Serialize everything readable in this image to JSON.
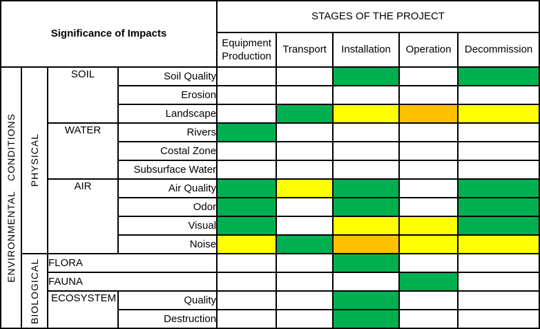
{
  "chart_data": {
    "type": "heatmap",
    "row_header_title": "Significance of Impacts",
    "col_header_title": "STAGES OF THE PROJECT",
    "side_label": "ENVIRONMENTAL CONDITIONS",
    "columns": [
      "Equipment Production",
      "Transport",
      "Installation",
      "Operation",
      "Decommission"
    ],
    "color_scale": {
      "green": "#00B050",
      "yellow": "#FFFF00",
      "orange": "#FFC000",
      "white": "#FFFFFF"
    },
    "rows": [
      {
        "group": "PHYSICAL",
        "category": "SOIL",
        "label": "Soil Quality",
        "cells": [
          "white",
          "white",
          "green",
          "white",
          "green"
        ]
      },
      {
        "group": "PHYSICAL",
        "category": "SOIL",
        "label": "Erosion",
        "cells": [
          "white",
          "white",
          "white",
          "white",
          "white"
        ]
      },
      {
        "group": "PHYSICAL",
        "category": "SOIL",
        "label": "Landscape",
        "cells": [
          "white",
          "green",
          "yellow",
          "orange",
          "yellow"
        ]
      },
      {
        "group": "PHYSICAL",
        "category": "WATER",
        "label": "Rivers",
        "cells": [
          "green",
          "white",
          "white",
          "white",
          "white"
        ]
      },
      {
        "group": "PHYSICAL",
        "category": "WATER",
        "label": "Costal Zone",
        "cells": [
          "white",
          "white",
          "white",
          "white",
          "white"
        ]
      },
      {
        "group": "PHYSICAL",
        "category": "WATER",
        "label": "Subsurface Water",
        "cells": [
          "white",
          "white",
          "white",
          "white",
          "white"
        ]
      },
      {
        "group": "PHYSICAL",
        "category": "AIR",
        "label": "Air Quality",
        "cells": [
          "green",
          "yellow",
          "green",
          "white",
          "green"
        ]
      },
      {
        "group": "PHYSICAL",
        "category": "AIR",
        "label": "Odor",
        "cells": [
          "green",
          "white",
          "green",
          "white",
          "green"
        ]
      },
      {
        "group": "PHYSICAL",
        "category": "AIR",
        "label": "Visual",
        "cells": [
          "green",
          "white",
          "yellow",
          "yellow",
          "green"
        ]
      },
      {
        "group": "PHYSICAL",
        "category": "AIR",
        "label": "Noise",
        "cells": [
          "yellow",
          "green",
          "orange",
          "yellow",
          "yellow"
        ]
      },
      {
        "group": "BIOLOGICAL",
        "category": null,
        "wide": true,
        "label": "FLORA",
        "cells": [
          "white",
          "white",
          "green",
          "white",
          "white"
        ]
      },
      {
        "group": "BIOLOGICAL",
        "category": null,
        "wide": true,
        "label": "FAUNA",
        "cells": [
          "white",
          "white",
          "white",
          "green",
          "white"
        ]
      },
      {
        "group": "BIOLOGICAL",
        "category": "ECOSYSTEM",
        "category_align": "left",
        "label": "Quality",
        "cells": [
          "white",
          "white",
          "green",
          "white",
          "white"
        ]
      },
      {
        "group": "BIOLOGICAL",
        "category": "ECOSYSTEM",
        "category_align": "left",
        "label": "Destruction",
        "cells": [
          "white",
          "white",
          "green",
          "white",
          "white"
        ]
      }
    ]
  }
}
